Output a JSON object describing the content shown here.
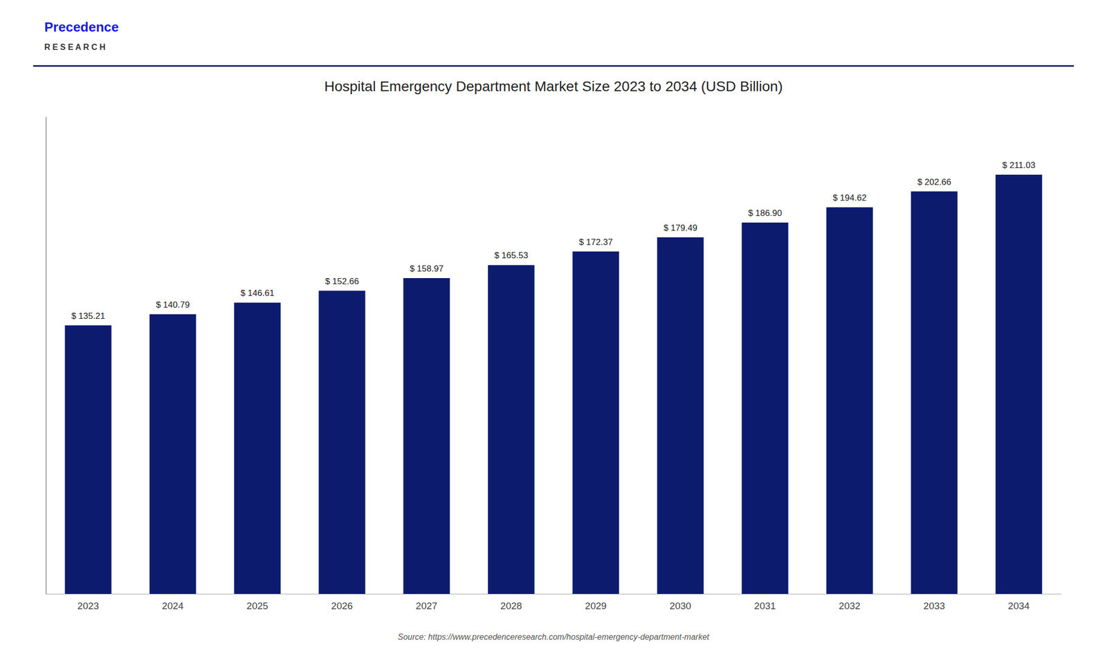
{
  "chart_data": {
    "type": "bar",
    "title": "Hospital Emergency Department Market Size 2023 to 2034 (USD Billion)",
    "categories": [
      "2023",
      "2024",
      "2025",
      "2026",
      "2027",
      "2028",
      "2029",
      "2030",
      "2031",
      "2032",
      "2033",
      "2034"
    ],
    "values": [
      135.21,
      140.79,
      146.61,
      152.66,
      158.97,
      165.53,
      172.37,
      179.49,
      186.9,
      194.62,
      202.66,
      211.03
    ],
    "value_labels": [
      "$ 135.21",
      "$ 140.79",
      "$ 146.61",
      "$ 152.66",
      "$ 158.97",
      "$ 165.53",
      "$ 172.37",
      "$ 179.49",
      "$ 186.90",
      "$ 194.62",
      "$ 202.66",
      "$ 211.03"
    ],
    "data_labels": true,
    "color": "#0d1b6e",
    "ylim": [
      0,
      240
    ],
    "yticks": [],
    "tick_labels": "x",
    "grid": false,
    "annotations": [
      "Precedence",
      "R E S E A R C H",
      "Source: https://www.precedenceresearch.com/hospital-emergency-department-market"
    ]
  }
}
